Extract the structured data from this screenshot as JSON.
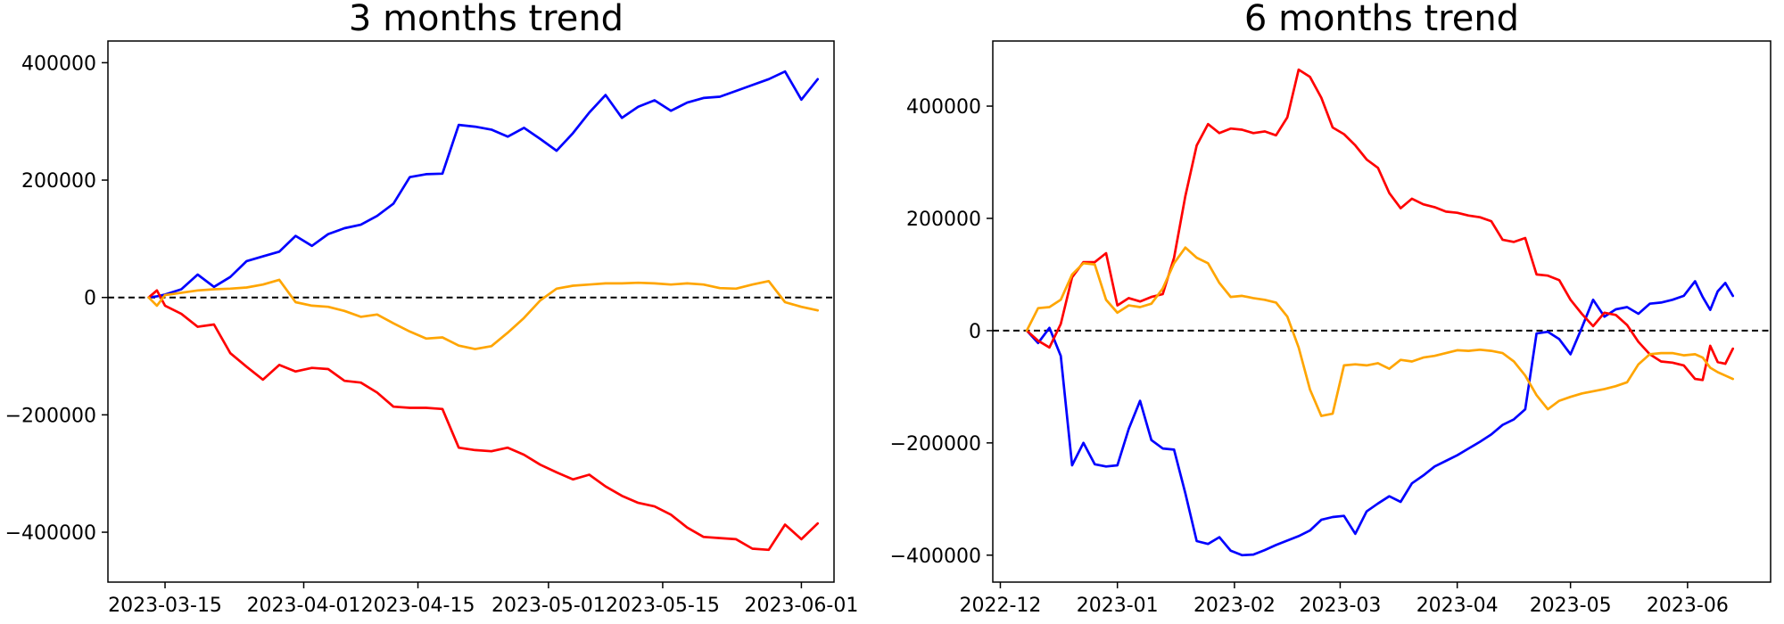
{
  "figure": {
    "background": "#ffffff",
    "text_color": "#000000"
  },
  "chart_data": [
    {
      "type": "line",
      "title": "3 months trend",
      "grid": false,
      "legend": "none",
      "zero_line": {
        "style": "dashed",
        "color": "#000000"
      },
      "x_range": [
        "2023-03-08",
        "2023-06-05"
      ],
      "y_range": [
        -485000,
        437000
      ],
      "x_ticks": [
        {
          "date": "2023-03-15",
          "label": "2023-03-15"
        },
        {
          "date": "2023-04-01",
          "label": "2023-04-01"
        },
        {
          "date": "2023-04-15",
          "label": "2023-04-15"
        },
        {
          "date": "2023-05-01",
          "label": "2023-05-01"
        },
        {
          "date": "2023-05-15",
          "label": "2023-05-15"
        },
        {
          "date": "2023-06-01",
          "label": "2023-06-01"
        }
      ],
      "y_ticks": [
        {
          "value": 400000,
          "label": "400000"
        },
        {
          "value": 200000,
          "label": "200000"
        },
        {
          "value": 0,
          "label": "0"
        },
        {
          "value": -200000,
          "label": "−200000"
        },
        {
          "value": -400000,
          "label": "−400000"
        }
      ],
      "dates": [
        "2023-03-13",
        "2023-03-14",
        "2023-03-15",
        "2023-03-17",
        "2023-03-19",
        "2023-03-21",
        "2023-03-23",
        "2023-03-25",
        "2023-03-27",
        "2023-03-29",
        "2023-03-31",
        "2023-04-02",
        "2023-04-04",
        "2023-04-06",
        "2023-04-08",
        "2023-04-10",
        "2023-04-12",
        "2023-04-14",
        "2023-04-16",
        "2023-04-18",
        "2023-04-20",
        "2023-04-22",
        "2023-04-24",
        "2023-04-26",
        "2023-04-28",
        "2023-04-30",
        "2023-05-02",
        "2023-05-04",
        "2023-05-06",
        "2023-05-08",
        "2023-05-10",
        "2023-05-12",
        "2023-05-14",
        "2023-05-16",
        "2023-05-18",
        "2023-05-20",
        "2023-05-22",
        "2023-05-24",
        "2023-05-26",
        "2023-05-28",
        "2023-05-30",
        "2023-06-01",
        "2023-06-03"
      ],
      "series": [
        {
          "name": "blue",
          "color": "#0000ff",
          "values": [
            0,
            2000,
            5000,
            14000,
            39000,
            18000,
            35000,
            62000,
            70000,
            78000,
            105000,
            88000,
            108000,
            118000,
            124000,
            139000,
            160000,
            205000,
            210000,
            211000,
            294000,
            291000,
            286000,
            274000,
            289000,
            270000,
            250000,
            280000,
            315000,
            345000,
            306000,
            325000,
            336000,
            318000,
            332000,
            340000,
            342000,
            352000,
            362000,
            372000,
            385000,
            337000,
            372000
          ]
        },
        {
          "name": "red",
          "color": "#ff0000",
          "values": [
            0,
            12000,
            -14000,
            -28000,
            -50000,
            -46000,
            -95000,
            -118000,
            -140000,
            -115000,
            -126000,
            -120000,
            -122000,
            -142000,
            -145000,
            -162000,
            -186000,
            -188000,
            -188000,
            -190000,
            -256000,
            -260000,
            -262000,
            -256000,
            -268000,
            -285000,
            -298000,
            -310000,
            -302000,
            -322000,
            -338000,
            -350000,
            -356000,
            -370000,
            -392000,
            -408000,
            -410000,
            -412000,
            -428000,
            -430000,
            -387000,
            -412000,
            -385000
          ]
        },
        {
          "name": "orange",
          "color": "#ffa500",
          "values": [
            0,
            -14000,
            4000,
            8000,
            12000,
            14000,
            15000,
            17000,
            22000,
            30000,
            -8000,
            -14000,
            -16000,
            -23000,
            -33000,
            -29000,
            -44000,
            -58000,
            -70000,
            -68000,
            -82000,
            -88000,
            -83000,
            -60000,
            -35000,
            -5000,
            15000,
            20000,
            22000,
            24000,
            24000,
            25000,
            24000,
            22000,
            24000,
            22000,
            16000,
            15000,
            22000,
            28000,
            -8000,
            -16000,
            -22000
          ]
        }
      ]
    },
    {
      "type": "line",
      "title": "6 months trend",
      "grid": false,
      "legend": "none",
      "zero_line": {
        "style": "dashed",
        "color": "#000000"
      },
      "x_range": [
        "2022-11-29",
        "2023-06-23"
      ],
      "y_range": [
        -448000,
        516000
      ],
      "x_ticks": [
        {
          "date": "2022-12-01",
          "label": "2022-12"
        },
        {
          "date": "2023-01-01",
          "label": "2023-01"
        },
        {
          "date": "2023-02-01",
          "label": "2023-02"
        },
        {
          "date": "2023-03-01",
          "label": "2023-03"
        },
        {
          "date": "2023-04-01",
          "label": "2023-04"
        },
        {
          "date": "2023-05-01",
          "label": "2023-05"
        },
        {
          "date": "2023-06-01",
          "label": "2023-06"
        }
      ],
      "y_ticks": [
        {
          "value": 400000,
          "label": "400000"
        },
        {
          "value": 200000,
          "label": "200000"
        },
        {
          "value": 0,
          "label": "0"
        },
        {
          "value": -200000,
          "label": "−200000"
        },
        {
          "value": -400000,
          "label": "−400000"
        }
      ],
      "dates": [
        "2022-12-08",
        "2022-12-11",
        "2022-12-14",
        "2022-12-17",
        "2022-12-20",
        "2022-12-23",
        "2022-12-26",
        "2022-12-29",
        "2023-01-01",
        "2023-01-04",
        "2023-01-07",
        "2023-01-10",
        "2023-01-13",
        "2023-01-16",
        "2023-01-19",
        "2023-01-22",
        "2023-01-25",
        "2023-01-28",
        "2023-01-31",
        "2023-02-03",
        "2023-02-06",
        "2023-02-09",
        "2023-02-12",
        "2023-02-15",
        "2023-02-18",
        "2023-02-21",
        "2023-02-24",
        "2023-02-27",
        "2023-03-02",
        "2023-03-05",
        "2023-03-08",
        "2023-03-11",
        "2023-03-14",
        "2023-03-17",
        "2023-03-20",
        "2023-03-23",
        "2023-03-26",
        "2023-03-29",
        "2023-04-01",
        "2023-04-04",
        "2023-04-07",
        "2023-04-10",
        "2023-04-13",
        "2023-04-16",
        "2023-04-19",
        "2023-04-22",
        "2023-04-25",
        "2023-04-28",
        "2023-05-01",
        "2023-05-04",
        "2023-05-07",
        "2023-05-10",
        "2023-05-13",
        "2023-05-16",
        "2023-05-19",
        "2023-05-22",
        "2023-05-25",
        "2023-05-28",
        "2023-05-31",
        "2023-06-03",
        "2023-06-05",
        "2023-06-07",
        "2023-06-09",
        "2023-06-11",
        "2023-06-13"
      ],
      "series": [
        {
          "name": "blue",
          "color": "#0000ff",
          "values": [
            0,
            -22000,
            5000,
            -45000,
            -240000,
            -200000,
            -238000,
            -242000,
            -240000,
            -175000,
            -125000,
            -195000,
            -210000,
            -212000,
            -290000,
            -375000,
            -380000,
            -368000,
            -392000,
            -400000,
            -399000,
            -391000,
            -382000,
            -374000,
            -366000,
            -356000,
            -337000,
            -332000,
            -330000,
            -362000,
            -322000,
            -308000,
            -295000,
            -305000,
            -272000,
            -258000,
            -242000,
            -232000,
            -222000,
            -210000,
            -198000,
            -185000,
            -168000,
            -158000,
            -140000,
            -5000,
            -2000,
            -15000,
            -42000,
            5000,
            55000,
            25000,
            38000,
            42000,
            30000,
            48000,
            50000,
            55000,
            62000,
            88000,
            60000,
            37000,
            70000,
            85000,
            62000
          ]
        },
        {
          "name": "red",
          "color": "#ff0000",
          "values": [
            0,
            -18000,
            -30000,
            12000,
            95000,
            122000,
            122000,
            138000,
            45000,
            58000,
            52000,
            60000,
            65000,
            130000,
            240000,
            330000,
            368000,
            352000,
            360000,
            358000,
            352000,
            355000,
            348000,
            380000,
            465000,
            452000,
            415000,
            362000,
            350000,
            330000,
            305000,
            290000,
            245000,
            218000,
            235000,
            225000,
            220000,
            212000,
            210000,
            205000,
            202000,
            195000,
            162000,
            158000,
            165000,
            100000,
            98000,
            90000,
            55000,
            30000,
            8000,
            32000,
            28000,
            10000,
            -20000,
            -42000,
            -55000,
            -57000,
            -62000,
            -86000,
            -88000,
            -27000,
            -56000,
            -59000,
            -32000
          ]
        },
        {
          "name": "orange",
          "color": "#ffa500",
          "values": [
            0,
            40000,
            42000,
            55000,
            100000,
            120000,
            118000,
            55000,
            32000,
            45000,
            42000,
            48000,
            75000,
            120000,
            148000,
            130000,
            120000,
            85000,
            60000,
            62000,
            58000,
            55000,
            50000,
            25000,
            -30000,
            -105000,
            -152000,
            -148000,
            -62000,
            -60000,
            -62000,
            -58000,
            -68000,
            -52000,
            -55000,
            -48000,
            -45000,
            -40000,
            -35000,
            -36000,
            -34000,
            -36000,
            -40000,
            -55000,
            -80000,
            -115000,
            -140000,
            -125000,
            -118000,
            -112000,
            -108000,
            -104000,
            -99000,
            -92000,
            -60000,
            -42000,
            -40000,
            -40000,
            -44000,
            -42000,
            -48000,
            -66000,
            -74000,
            -80000,
            -86000
          ]
        }
      ]
    }
  ]
}
